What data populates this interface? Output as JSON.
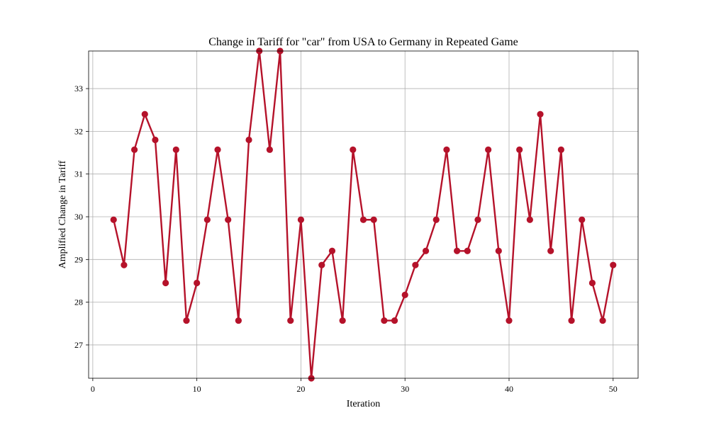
{
  "chart_data": {
    "type": "line",
    "title": "Change in Tariff for \"car\" from USA to Germany in Repeated Game",
    "xlabel": "Iteration",
    "ylabel": "Amplified Change in Tariff",
    "xlim": [
      -0.4,
      52.4
    ],
    "ylim": [
      26.22,
      33.88
    ],
    "xticks": [
      0,
      10,
      20,
      30,
      40,
      50
    ],
    "yticks": [
      27,
      28,
      29,
      30,
      31,
      32,
      33
    ],
    "grid": true,
    "line_color": "#b5122a",
    "series": [
      {
        "x": [
          2,
          3,
          4,
          5,
          6,
          7,
          8,
          9,
          10,
          11,
          12,
          13,
          14,
          15,
          16,
          17,
          18,
          19,
          20,
          21,
          22,
          23,
          24,
          25,
          26,
          27,
          28,
          29,
          30,
          31,
          32,
          33,
          34,
          35,
          36,
          37,
          38,
          39,
          40,
          41,
          42,
          43,
          44,
          45,
          46,
          47,
          48,
          49,
          50
        ],
        "values": [
          29.93,
          28.87,
          31.57,
          32.4,
          31.8,
          28.45,
          31.57,
          27.57,
          28.45,
          29.93,
          31.57,
          29.93,
          27.57,
          31.8,
          33.88,
          31.57,
          33.88,
          27.57,
          29.93,
          26.22,
          28.87,
          29.2,
          27.57,
          31.57,
          29.93,
          29.93,
          27.57,
          27.57,
          28.17,
          28.87,
          29.2,
          29.93,
          31.57,
          29.2,
          29.2,
          29.93,
          31.57,
          29.2,
          27.57,
          31.57,
          29.93,
          32.4,
          29.2,
          31.57,
          27.57,
          29.93,
          28.45,
          27.57,
          28.87
        ]
      }
    ]
  }
}
